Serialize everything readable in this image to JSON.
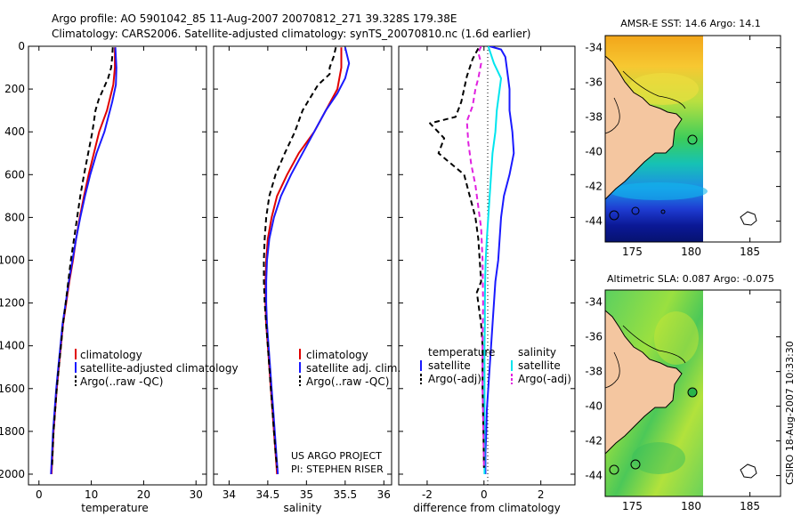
{
  "title_line1": "Argo profile: AO 5901042_85 11-Aug-2007 20070812_271 39.328S 179.38E",
  "title_line2": "Climatology: CARS2006. Satellite-adjusted climatology: synTS_20070810.nc (1.6d earlier)",
  "side_label": "CSIRO 18-Aug-2007 10:33:30",
  "colors": {
    "red": "#e00000",
    "blue": "#1a1aff",
    "black": "#000000",
    "cyan": "#00e5ee",
    "magenta": "#e020e0"
  },
  "chart_data": [
    {
      "id": "temperature",
      "type": "line",
      "xlabel": "temperature",
      "xlim": [
        -2,
        32
      ],
      "xticks": [
        0,
        10,
        20,
        30
      ],
      "ylim": [
        0,
        2050
      ],
      "yticks": [
        0,
        200,
        400,
        600,
        800,
        1000,
        1200,
        1400,
        1600,
        1800,
        2000
      ],
      "legend": [
        "climatology",
        "satellite-adjusted climatology",
        "Argo(..raw -QC)"
      ],
      "series": [
        {
          "name": "climatology",
          "color": "red",
          "dash": false,
          "points": [
            [
              14.5,
              5
            ],
            [
              14.5,
              100
            ],
            [
              14.2,
              180
            ],
            [
              13.0,
              300
            ],
            [
              11.5,
              400
            ],
            [
              10.5,
              500
            ],
            [
              9.5,
              600
            ],
            [
              8.6,
              700
            ],
            [
              7.8,
              800
            ],
            [
              7.1,
              900
            ],
            [
              6.5,
              1000
            ],
            [
              5.8,
              1100
            ],
            [
              5.2,
              1200
            ],
            [
              4.6,
              1300
            ],
            [
              4.2,
              1400
            ],
            [
              3.8,
              1500
            ],
            [
              3.4,
              1600
            ],
            [
              3.1,
              1700
            ],
            [
              2.8,
              1800
            ],
            [
              2.6,
              1900
            ],
            [
              2.4,
              2000
            ]
          ]
        },
        {
          "name": "satellite",
          "color": "blue",
          "dash": false,
          "points": [
            [
              14.6,
              5
            ],
            [
              14.8,
              100
            ],
            [
              14.7,
              180
            ],
            [
              14.0,
              260
            ],
            [
              12.5,
              400
            ],
            [
              11.0,
              500
            ],
            [
              9.8,
              600
            ],
            [
              8.8,
              700
            ],
            [
              7.9,
              800
            ],
            [
              7.1,
              900
            ],
            [
              6.4,
              1000
            ],
            [
              5.7,
              1100
            ],
            [
              5.1,
              1200
            ],
            [
              4.5,
              1300
            ],
            [
              4.1,
              1400
            ],
            [
              3.7,
              1500
            ],
            [
              3.3,
              1600
            ],
            [
              3.0,
              1700
            ],
            [
              2.7,
              1800
            ],
            [
              2.5,
              1900
            ],
            [
              2.3,
              2000
            ]
          ]
        },
        {
          "name": "argo",
          "color": "black",
          "dash": true,
          "points": [
            [
              14.1,
              5
            ],
            [
              14.0,
              50
            ],
            [
              13.8,
              100
            ],
            [
              13.2,
              150
            ],
            [
              12.3,
              200
            ],
            [
              11.4,
              250
            ],
            [
              10.8,
              300
            ],
            [
              10.2,
              400
            ],
            [
              9.4,
              500
            ],
            [
              8.6,
              600
            ],
            [
              7.9,
              700
            ],
            [
              7.3,
              800
            ],
            [
              6.7,
              900
            ],
            [
              6.1,
              1000
            ],
            [
              5.6,
              1100
            ],
            [
              5.1,
              1200
            ],
            [
              4.6,
              1300
            ],
            [
              4.2,
              1400
            ],
            [
              3.8,
              1500
            ],
            [
              3.4,
              1600
            ],
            [
              3.1,
              1700
            ],
            [
              2.8,
              1800
            ],
            [
              2.6,
              1900
            ],
            [
              2.5,
              1970
            ]
          ]
        }
      ]
    },
    {
      "id": "salinity",
      "type": "line",
      "xlabel": "salinity",
      "xlim": [
        33.8,
        36.1
      ],
      "xticks": [
        34,
        34.5,
        35,
        35.5,
        36
      ],
      "xtick_labels": [
        "34",
        "34.5",
        "35",
        "35.5",
        "36"
      ],
      "ylim": [
        0,
        2050
      ],
      "yticks": [
        0,
        200,
        400,
        600,
        800,
        1000,
        1200,
        1400,
        1600,
        1800,
        2000
      ],
      "legend": [
        "climatology",
        "satellite adj. clim.",
        "Argo(..raw -QC)"
      ],
      "annotation": [
        "US ARGO PROJECT",
        "PI: STEPHEN RISER"
      ],
      "series": [
        {
          "name": "climatology",
          "color": "red",
          "dash": false,
          "points": [
            [
              35.45,
              5
            ],
            [
              35.45,
              100
            ],
            [
              35.4,
              200
            ],
            [
              35.25,
              300
            ],
            [
              35.1,
              400
            ],
            [
              34.9,
              500
            ],
            [
              34.75,
              600
            ],
            [
              34.62,
              700
            ],
            [
              34.55,
              800
            ],
            [
              34.5,
              900
            ],
            [
              34.48,
              1000
            ],
            [
              34.47,
              1100
            ],
            [
              34.47,
              1200
            ],
            [
              34.48,
              1300
            ],
            [
              34.5,
              1400
            ],
            [
              34.52,
              1500
            ],
            [
              34.54,
              1600
            ],
            [
              34.56,
              1700
            ],
            [
              34.58,
              1800
            ],
            [
              34.6,
              1900
            ],
            [
              34.62,
              2000
            ]
          ]
        },
        {
          "name": "satellite",
          "color": "blue",
          "dash": false,
          "points": [
            [
              35.5,
              5
            ],
            [
              35.55,
              80
            ],
            [
              35.5,
              150
            ],
            [
              35.4,
              220
            ],
            [
              35.25,
              300
            ],
            [
              35.1,
              400
            ],
            [
              34.95,
              500
            ],
            [
              34.8,
              600
            ],
            [
              34.67,
              700
            ],
            [
              34.58,
              800
            ],
            [
              34.52,
              900
            ],
            [
              34.49,
              1000
            ],
            [
              34.48,
              1100
            ],
            [
              34.48,
              1200
            ],
            [
              34.49,
              1300
            ],
            [
              34.51,
              1400
            ],
            [
              34.53,
              1500
            ],
            [
              34.55,
              1600
            ],
            [
              34.57,
              1700
            ],
            [
              34.59,
              1800
            ],
            [
              34.61,
              1900
            ],
            [
              34.63,
              2000
            ]
          ]
        },
        {
          "name": "argo",
          "color": "black",
          "dash": true,
          "points": [
            [
              35.38,
              5
            ],
            [
              35.35,
              50
            ],
            [
              35.3,
              100
            ],
            [
              35.3,
              130
            ],
            [
              35.15,
              180
            ],
            [
              35.05,
              240
            ],
            [
              34.95,
              300
            ],
            [
              34.85,
              400
            ],
            [
              34.72,
              500
            ],
            [
              34.6,
              600
            ],
            [
              34.52,
              700
            ],
            [
              34.48,
              800
            ],
            [
              34.46,
              900
            ],
            [
              34.45,
              1000
            ],
            [
              34.45,
              1100
            ],
            [
              34.46,
              1200
            ],
            [
              34.48,
              1300
            ],
            [
              34.5,
              1400
            ],
            [
              34.52,
              1500
            ],
            [
              34.54,
              1600
            ],
            [
              34.56,
              1700
            ],
            [
              34.58,
              1800
            ],
            [
              34.6,
              1900
            ],
            [
              34.62,
              1970
            ]
          ]
        }
      ]
    },
    {
      "id": "difference",
      "type": "line",
      "xlabel": "difference from climatology",
      "xlim": [
        -3,
        3.2
      ],
      "xticks": [
        -2,
        0,
        2
      ],
      "ylim": [
        0,
        2050
      ],
      "yticks": [
        0,
        200,
        400,
        600,
        800,
        1000,
        1200,
        1400,
        1600,
        1800,
        2000
      ],
      "legend_left_title": "temperature",
      "legend_left": [
        "satellite",
        "Argo(-adj)"
      ],
      "legend_right_title": "salinity",
      "legend_right": [
        "satellite",
        "Argo(-adj)"
      ],
      "series": [
        {
          "name": "temperature satellite",
          "color": "blue",
          "dash": false,
          "points": [
            [
              0.2,
              0
            ],
            [
              0.6,
              15
            ],
            [
              0.75,
              50
            ],
            [
              0.8,
              100
            ],
            [
              0.85,
              150
            ],
            [
              0.9,
              200
            ],
            [
              0.9,
              300
            ],
            [
              1.0,
              400
            ],
            [
              1.05,
              500
            ],
            [
              0.9,
              600
            ],
            [
              0.7,
              700
            ],
            [
              0.6,
              800
            ],
            [
              0.55,
              900
            ],
            [
              0.5,
              1000
            ],
            [
              0.4,
              1100
            ],
            [
              0.35,
              1200
            ],
            [
              0.3,
              1300
            ],
            [
              0.25,
              1400
            ],
            [
              0.2,
              1500
            ],
            [
              0.15,
              1600
            ],
            [
              0.1,
              1700
            ],
            [
              0.08,
              1800
            ],
            [
              0.05,
              1900
            ],
            [
              0.05,
              2000
            ]
          ]
        },
        {
          "name": "salinity satellite",
          "color": "cyan",
          "dash": false,
          "points": [
            [
              0.15,
              0
            ],
            [
              0.35,
              80
            ],
            [
              0.6,
              150
            ],
            [
              0.55,
              200
            ],
            [
              0.45,
              300
            ],
            [
              0.4,
              400
            ],
            [
              0.3,
              500
            ],
            [
              0.25,
              600
            ],
            [
              0.2,
              700
            ],
            [
              0.15,
              800
            ],
            [
              0.1,
              900
            ],
            [
              0.06,
              1000
            ],
            [
              0.04,
              1100
            ],
            [
              0.03,
              1200
            ],
            [
              0.03,
              1300
            ],
            [
              0.02,
              1400
            ],
            [
              0.02,
              1500
            ],
            [
              0.02,
              1600
            ],
            [
              0.02,
              1700
            ],
            [
              0.02,
              1800
            ],
            [
              0.02,
              1900
            ],
            [
              0.02,
              2000
            ]
          ]
        },
        {
          "name": "temperature argo",
          "color": "black",
          "dash": true,
          "points": [
            [
              -0.2,
              10
            ],
            [
              -0.4,
              60
            ],
            [
              -0.6,
              140
            ],
            [
              -0.8,
              260
            ],
            [
              -1.0,
              330
            ],
            [
              -1.9,
              360
            ],
            [
              -1.4,
              430
            ],
            [
              -1.6,
              500
            ],
            [
              -0.7,
              600
            ],
            [
              -0.5,
              700
            ],
            [
              -0.3,
              800
            ],
            [
              -0.2,
              900
            ],
            [
              -0.15,
              1000
            ],
            [
              -0.1,
              1100
            ],
            [
              -0.25,
              1150
            ],
            [
              -0.2,
              1200
            ],
            [
              -0.1,
              1300
            ],
            [
              -0.05,
              1400
            ],
            [
              -0.05,
              1600
            ],
            [
              -0.02,
              1800
            ],
            [
              0,
              1970
            ]
          ]
        },
        {
          "name": "salinity argo",
          "color": "magenta",
          "dash": true,
          "points": [
            [
              -0.1,
              0
            ],
            [
              -0.2,
              30
            ],
            [
              -0.1,
              80
            ],
            [
              -0.2,
              150
            ],
            [
              -0.3,
              200
            ],
            [
              -0.4,
              280
            ],
            [
              -0.6,
              350
            ],
            [
              -0.55,
              450
            ],
            [
              -0.45,
              550
            ],
            [
              -0.3,
              650
            ],
            [
              -0.2,
              750
            ],
            [
              -0.1,
              850
            ],
            [
              -0.05,
              1000
            ],
            [
              -0.03,
              1200
            ],
            [
              -0.05,
              1400
            ],
            [
              -0.05,
              1600
            ],
            [
              -0.02,
              1800
            ],
            [
              0,
              1970
            ]
          ]
        }
      ]
    },
    {
      "id": "sst_map",
      "type": "heatmap",
      "title": "AMSR-E SST: 14.6 Argo: 14.1",
      "xlim": [
        172.7,
        187.6
      ],
      "xticks": [
        175,
        180,
        185
      ],
      "ylim": [
        -45.2,
        -33.3
      ],
      "yticks": [
        -34,
        -36,
        -38,
        -40,
        -42,
        -44
      ],
      "profile_location": [
        179.38,
        -39.33
      ]
    },
    {
      "id": "sla_map",
      "type": "heatmap",
      "title": "Altimetric SLA: 0.087 Argo: -0.075",
      "xlim": [
        172.7,
        187.6
      ],
      "xticks": [
        175,
        180,
        185
      ],
      "ylim": [
        -45.2,
        -33.3
      ],
      "yticks": [
        -34,
        -36,
        -38,
        -40,
        -42,
        -44
      ],
      "profile_location": [
        179.38,
        -39.33
      ]
    }
  ]
}
